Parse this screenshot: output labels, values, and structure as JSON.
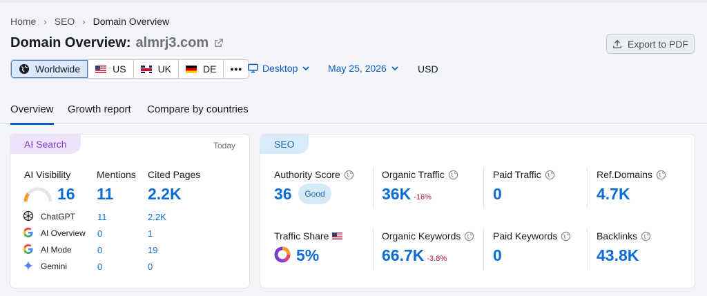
{
  "breadcrumb": {
    "home": "Home",
    "seo": "SEO",
    "current": "Domain Overview"
  },
  "title": {
    "prefix": "Domain Overview:",
    "domain": "almrj3.com"
  },
  "export_label": "Export to PDF",
  "databases": [
    {
      "label": "Worldwide",
      "icon": "globe-icon",
      "active": true
    },
    {
      "label": "US",
      "icon": "us-flag-icon"
    },
    {
      "label": "UK",
      "icon": "uk-flag-icon"
    },
    {
      "label": "DE",
      "icon": "de-flag-icon"
    },
    {
      "label": "•••"
    }
  ],
  "device": "Desktop",
  "date": "May 25, 2026",
  "currency": "USD",
  "tabs": [
    "Overview",
    "Growth report",
    "Compare by countries"
  ],
  "ai": {
    "tag": "AI Search",
    "today": "Today",
    "visibility_label": "AI Visibility",
    "visibility_value": "16",
    "mentions_label": "Mentions",
    "mentions_value": "11",
    "cited_label": "Cited Pages",
    "cited_value": "2.2K",
    "rows": [
      {
        "name": "ChatGPT",
        "mentions": "11",
        "cited": "2.2K"
      },
      {
        "name": "AI Overview",
        "mentions": "0",
        "cited": "1"
      },
      {
        "name": "AI Mode",
        "mentions": "0",
        "cited": "19"
      },
      {
        "name": "Gemini",
        "mentions": "0",
        "cited": "0"
      }
    ]
  },
  "seo": {
    "tag": "SEO",
    "authority_label": "Authority Score",
    "authority_value": "36",
    "authority_badge": "Good",
    "organic_traffic_label": "Organic Traffic",
    "organic_traffic_value": "36K",
    "organic_traffic_delta": "-16%",
    "paid_traffic_label": "Paid Traffic",
    "paid_traffic_value": "0",
    "ref_domains_label": "Ref.Domains",
    "ref_domains_value": "4.7K",
    "traffic_share_label": "Traffic Share",
    "traffic_share_value": "5%",
    "organic_keywords_label": "Organic Keywords",
    "organic_keywords_value": "66.7K",
    "organic_keywords_delta": "-3.8%",
    "paid_keywords_label": "Paid Keywords",
    "paid_keywords_value": "0",
    "backlinks_label": "Backlinks",
    "backlinks_value": "43.8K"
  },
  "colors": {
    "accent": "#0a6cd6",
    "negative": "#b1163b",
    "ai_tag": "#7a3fc6",
    "seo_tag": "#1d67b8"
  }
}
